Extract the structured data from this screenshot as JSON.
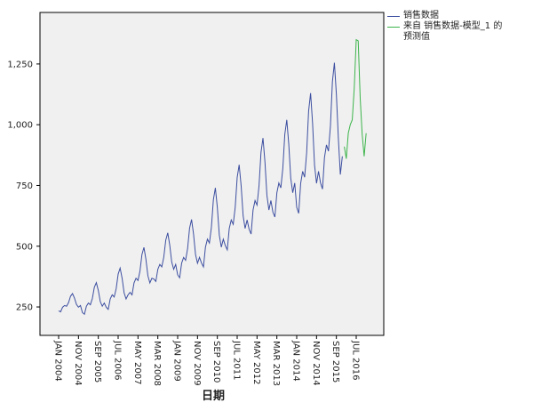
{
  "chart_data": {
    "type": "line",
    "x_label": "日期",
    "categories": [
      "JAN 2004",
      null,
      null,
      null,
      null,
      null,
      null,
      null,
      null,
      null,
      "NOV 2004",
      null,
      null,
      null,
      null,
      null,
      null,
      null,
      null,
      null,
      "SEP 2005",
      null,
      null,
      null,
      null,
      null,
      null,
      null,
      null,
      null,
      "JUL 2006",
      null,
      null,
      null,
      null,
      null,
      null,
      null,
      null,
      null,
      "MAY 2007",
      null,
      null,
      null,
      null,
      null,
      null,
      null,
      null,
      null,
      "MAR 2008",
      null,
      null,
      null,
      null,
      null,
      null,
      null,
      null,
      null,
      "JAN 2009",
      null,
      null,
      null,
      null,
      null,
      null,
      null,
      null,
      null,
      "NOV 2009",
      null,
      null,
      null,
      null,
      null,
      null,
      null,
      null,
      null,
      "SEP 2010",
      null,
      null,
      null,
      null,
      null,
      null,
      null,
      null,
      null,
      "JUL 2011",
      null,
      null,
      null,
      null,
      null,
      null,
      null,
      null,
      null,
      "MAY 2012",
      null,
      null,
      null,
      null,
      null,
      null,
      null,
      null,
      null,
      "MAR 2013",
      null,
      null,
      null,
      null,
      null,
      null,
      null,
      null,
      null,
      "JAN 2014",
      null,
      null,
      null,
      null,
      null,
      null,
      null,
      null,
      null,
      "NOV 2014",
      null,
      null,
      null,
      null,
      null,
      null,
      null,
      null,
      null,
      "SEP 2015",
      null,
      null,
      null,
      null,
      null,
      null,
      null,
      null,
      null,
      "JUL 2016",
      null,
      null,
      null,
      null,
      null
    ],
    "series": [
      {
        "name": "销售数据",
        "color": "#3d4fa0",
        "values": [
          234,
          230,
          249,
          256,
          253,
          268,
          294,
          305,
          286,
          260,
          249,
          256,
          227,
          220,
          253,
          266,
          259,
          285,
          331,
          350,
          318,
          272,
          253,
          266,
          249,
          240,
          283,
          300,
          291,
          325,
          385,
          410,
          368,
          308,
          283,
          300,
          310,
          300,
          349,
          368,
          359,
          398,
          466,
          495,
          446,
          378,
          349,
          368,
          365,
          355,
          405,
          425,
          415,
          455,
          525,
          555,
          505,
          435,
          405,
          425,
          382,
          370,
          430,
          454,
          442,
          490,
          574,
          610,
          550,
          466,
          430,
          454,
          431,
          415,
          496,
          529,
          513,
          578,
          691,
          740,
          659,
          545,
          496,
          529,
          503,
          485,
          573,
          608,
          590,
          660,
          783,
          835,
          748,
          625,
          573,
          608,
          570,
          550,
          649,
          688,
          669,
          748,
          886,
          945,
          846,
          708,
          649,
          688,
          640,
          620,
          720,
          760,
          740,
          820,
          960,
          1020,
          920,
          780,
          720,
          760,
          660,
          635,
          759,
          808,
          784,
          883,
          1056,
          1130,
          1006,
          833,
          759,
          808,
          761,
          735,
          865,
          917,
          891,
          995,
          1177,
          1255,
          1125,
          943,
          795,
          870,
          null,
          null,
          null,
          null,
          null,
          null,
          null,
          null,
          null,
          null,
          null,
          null
        ]
      },
      {
        "name": "来自 销售数据-模型_1 的 预测值",
        "color": "#3cb44b",
        "values": [
          null,
          null,
          null,
          null,
          null,
          null,
          null,
          null,
          null,
          null,
          null,
          null,
          null,
          null,
          null,
          null,
          null,
          null,
          null,
          null,
          null,
          null,
          null,
          null,
          null,
          null,
          null,
          null,
          null,
          null,
          null,
          null,
          null,
          null,
          null,
          null,
          null,
          null,
          null,
          null,
          null,
          null,
          null,
          null,
          null,
          null,
          null,
          null,
          null,
          null,
          null,
          null,
          null,
          null,
          null,
          null,
          null,
          null,
          null,
          null,
          null,
          null,
          null,
          null,
          null,
          null,
          null,
          null,
          null,
          null,
          null,
          null,
          null,
          null,
          null,
          null,
          null,
          null,
          null,
          null,
          null,
          null,
          null,
          null,
          null,
          null,
          null,
          null,
          null,
          null,
          null,
          null,
          null,
          null,
          null,
          null,
          null,
          null,
          null,
          null,
          null,
          null,
          null,
          null,
          null,
          null,
          null,
          null,
          null,
          null,
          null,
          null,
          null,
          null,
          null,
          null,
          null,
          null,
          null,
          null,
          null,
          null,
          null,
          null,
          null,
          null,
          null,
          null,
          null,
          null,
          null,
          null,
          null,
          null,
          null,
          null,
          null,
          null,
          null,
          null,
          null,
          null,
          null,
          null,
          910,
          860,
          965,
          1000,
          1020,
          1150,
          1350,
          1345,
          1110,
          960,
          870,
          965
        ]
      }
    ],
    "ylim": [
      133,
      1462
    ],
    "yticks": [
      250,
      500,
      750,
      {
        "value": 1000,
        "label": "1,000"
      },
      {
        "value": 1250,
        "label": "1,250"
      }
    ],
    "grid": false,
    "legend": "right"
  }
}
